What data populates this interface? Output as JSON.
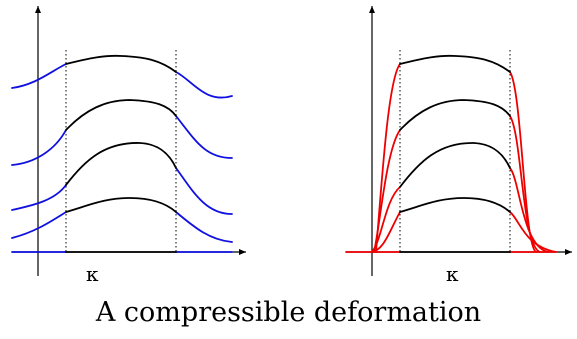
{
  "left_panel": {
    "axis_label": "κ"
  },
  "right_panel": {
    "axis_label": "κ"
  },
  "caption": "A compressible deformation",
  "colors": {
    "inner": "#000000",
    "left_outer": "#1010e0",
    "right_outer": "#ee0000"
  }
}
